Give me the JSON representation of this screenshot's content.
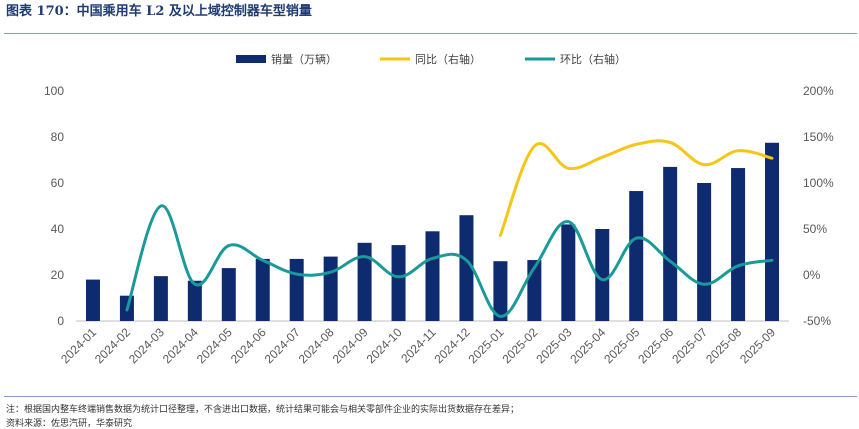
{
  "header": {
    "title": "图表 170：中国乘用车 L2 及以上域控制器车型销量"
  },
  "footer": {
    "note": "注：根据国内整车终端销售数据为统计口径整理，不含进出口数据，统计结果可能会与相关零部件企业的实际出货数据存在差异；",
    "source": "资料来源：佐思汽研，华泰研究"
  },
  "chart_data": {
    "type": "bar",
    "categories": [
      "2024-01",
      "2024-02",
      "2024-03",
      "2024-04",
      "2024-05",
      "2024-06",
      "2024-07",
      "2024-08",
      "2024-09",
      "2024-10",
      "2024-11",
      "2024-12",
      "2025-01",
      "2025-02",
      "2025-03",
      "2025-04",
      "2025-05",
      "2025-06",
      "2025-07",
      "2025-08",
      "2025-09"
    ],
    "series": [
      {
        "name": "销量（万辆）",
        "type": "bar",
        "axis": "left",
        "color": "#0d2b6e",
        "values": [
          18,
          11,
          19.5,
          17.5,
          23,
          27,
          27,
          28,
          34,
          33,
          39,
          46,
          26,
          26.5,
          42,
          40,
          56.5,
          67,
          60,
          66.5,
          77.5
        ]
      },
      {
        "name": "同比（右轴）",
        "type": "line",
        "axis": "right",
        "color": "#f5c518",
        "values": [
          null,
          null,
          null,
          null,
          null,
          null,
          null,
          null,
          null,
          null,
          null,
          null,
          43,
          140,
          116,
          128,
          142,
          144,
          120,
          135,
          127
        ]
      },
      {
        "name": "环比（右轴）",
        "type": "line",
        "axis": "right",
        "color": "#1a9a9a",
        "values": [
          null,
          -38,
          75,
          -10,
          32,
          16,
          1,
          3,
          20,
          -2,
          18,
          16,
          -45,
          8,
          58,
          -5,
          40,
          15,
          -10,
          10,
          16
        ]
      }
    ],
    "y_left": {
      "min": 0,
      "max": 100,
      "ticks": [
        "0",
        "20",
        "40",
        "60",
        "80",
        "100"
      ]
    },
    "y_right": {
      "min": -50,
      "max": 200,
      "ticks": [
        "-50%",
        "0%",
        "50%",
        "100%",
        "150%",
        "200%"
      ]
    },
    "legend_position": "top-center",
    "grid": false
  }
}
